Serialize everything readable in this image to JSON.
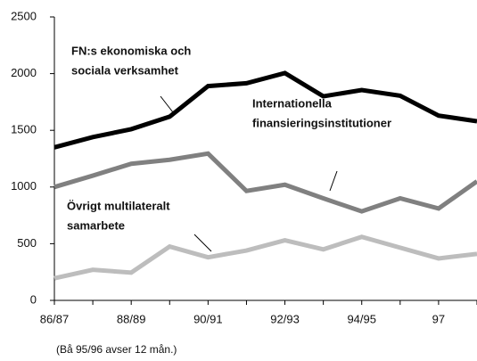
{
  "chart_data": {
    "type": "line",
    "categories": [
      "86/87",
      null,
      "88/89",
      null,
      "90/91",
      null,
      "92/93",
      null,
      "94/95",
      null,
      "97",
      null
    ],
    "series": [
      {
        "name": "FN:s ekonomiska och sociala verksamhet",
        "color": "#000000",
        "values": [
          1350,
          1440,
          1510,
          1620,
          1890,
          1915,
          2005,
          1800,
          1855,
          1805,
          1630,
          1580
        ]
      },
      {
        "name": "Internationella finansieringsinstitutioner",
        "color": "#808080",
        "values": [
          1000,
          1100,
          1205,
          1240,
          1295,
          965,
          1020,
          900,
          785,
          900,
          810,
          1050
        ]
      },
      {
        "name": "Övrigt multilateralt samarbete",
        "color": "#bdbdbd",
        "values": [
          195,
          270,
          245,
          475,
          380,
          440,
          530,
          450,
          560,
          465,
          370,
          410
        ]
      }
    ],
    "annotations": [
      {
        "lines": [
          "FN:s ekonomiska och",
          "sociala verksamhet"
        ]
      },
      {
        "lines": [
          "Internationella",
          "finansieringsinstitutioner"
        ]
      },
      {
        "lines": [
          "Övrigt multilateralt",
          "samarbete"
        ]
      }
    ],
    "note": "(Bå 95/96 avser 12 mån.)",
    "ylim": [
      0,
      2500
    ],
    "yticks": [
      0,
      500,
      1000,
      1500,
      2000,
      2500
    ],
    "grid": false
  }
}
